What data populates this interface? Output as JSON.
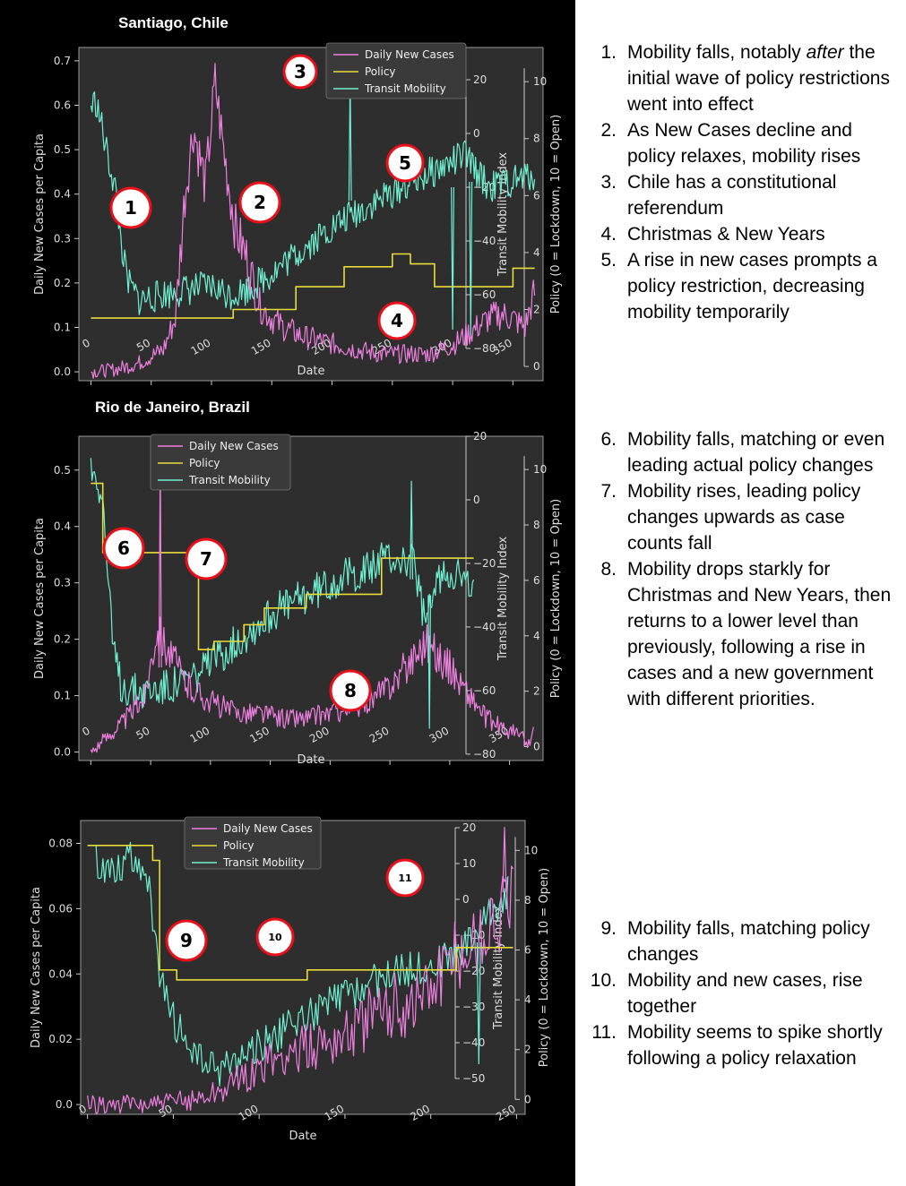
{
  "page": {
    "left_background": "#000000",
    "plot_background": "#2e2e2e",
    "right_background": "#ffffff"
  },
  "colors": {
    "cases": "#ee7fe0",
    "policy": "#e8dc3a",
    "mobility": "#6ff0d0",
    "annotation": "#e8101a"
  },
  "panels": [
    {
      "city": "Santiago, Chile",
      "annotation_markers": [
        "1",
        "2",
        "3",
        "4",
        "5"
      ],
      "notes": [
        {
          "num": "1.",
          "pre": "Mobility falls, notably ",
          "em": "after",
          "post": " the initial wave of policy restrictions went into effect"
        },
        {
          "num": "2.",
          "pre": "As New Cases decline and policy relaxes, mobility rises",
          "em": "",
          "post": ""
        },
        {
          "num": "3.",
          "pre": "Chile has a constitutional referendum",
          "em": "",
          "post": ""
        },
        {
          "num": "4.",
          "pre": "Christmas & New Years",
          "em": "",
          "post": ""
        },
        {
          "num": "5.",
          "pre": "A rise in new cases prompts a policy restriction, decreasing mobility temporarily",
          "em": "",
          "post": ""
        }
      ]
    },
    {
      "city": "Rio de Janeiro, Brazil",
      "annotation_markers": [
        "6",
        "7",
        "8"
      ],
      "notes": [
        {
          "num": "6.",
          "pre": "Mobility falls, matching or even leading actual policy changes",
          "em": "",
          "post": ""
        },
        {
          "num": "7.",
          "pre": "Mobility rises, leading policy changes upwards as case counts fall",
          "em": "",
          "post": ""
        },
        {
          "num": "8.",
          "pre": "Mobility drops starkly for Christmas and New Years, then returns to a lower level than previously, following a rise in cases and a new government with different priorities.",
          "em": "",
          "post": ""
        }
      ]
    },
    {
      "city": "",
      "annotation_markers": [
        "9",
        "10",
        "11"
      ],
      "notes": [
        {
          "num": "9.",
          "pre": "Mobility falls, matching policy changes",
          "em": "",
          "post": ""
        },
        {
          "num": "10.",
          "pre": "Mobility and new cases, rise together",
          "em": "",
          "post": ""
        },
        {
          "num": "11.",
          "pre": "Mobility seems to spike shortly following a policy relaxation",
          "em": "",
          "post": ""
        }
      ]
    }
  ],
  "chart_data": [
    {
      "type": "line",
      "xlabel": "Date",
      "ylabel": "Daily New Cases per Capita",
      "ylabel_mobility": "Transit Mobility Index",
      "ylabel_policy": "Policy (0 = Lockdown, 10 = Open)",
      "xlim": [
        -10,
        375
      ],
      "ylim": [
        -0.02,
        0.73
      ],
      "mobility_lim": [
        -92,
        32
      ],
      "policy_lim": [
        -0.5,
        11.2
      ],
      "xticks": [
        0,
        50,
        100,
        150,
        200,
        250,
        300,
        350
      ],
      "yticks": [
        0.0,
        0.1,
        0.2,
        0.3,
        0.4,
        0.5,
        0.6,
        0.7
      ],
      "mobility_ticks": [
        -80,
        -60,
        -40,
        -20,
        0,
        20
      ],
      "policy_ticks": [
        0,
        2,
        4,
        6,
        8,
        10
      ],
      "legend": [
        "Daily New Cases",
        "Policy",
        "Transit Mobility"
      ],
      "legend_position": "upper-right",
      "series": [
        {
          "name": "Daily New Cases",
          "axis": "cases",
          "x": [
            0,
            20,
            40,
            60,
            70,
            78,
            85,
            95,
            103,
            110,
            120,
            130,
            140,
            150,
            160,
            175,
            190,
            205,
            220,
            240,
            260,
            280,
            300,
            310,
            320,
            330,
            340,
            350,
            360,
            368
          ],
          "y": [
            0,
            0.005,
            0.02,
            0.05,
            0.12,
            0.4,
            0.55,
            0.42,
            0.65,
            0.5,
            0.32,
            0.25,
            0.15,
            0.12,
            0.1,
            0.08,
            0.07,
            0.06,
            0.05,
            0.04,
            0.04,
            0.04,
            0.06,
            0.08,
            0.1,
            0.12,
            0.13,
            0.12,
            0.1,
            0.18
          ],
          "noise": 0.06
        },
        {
          "name": "Policy",
          "axis": "policy",
          "x": [
            0,
            118,
            118,
            170,
            170,
            210,
            210,
            250,
            250,
            265,
            265,
            285,
            285,
            350,
            350,
            368
          ],
          "y": [
            1.7,
            1.7,
            2.0,
            2.0,
            2.8,
            2.8,
            3.5,
            3.5,
            3.95,
            3.95,
            3.6,
            3.6,
            2.8,
            2.8,
            3.45,
            3.45
          ],
          "noise": 0
        },
        {
          "name": "Transit Mobility",
          "axis": "mobility",
          "x": [
            0,
            4,
            8,
            12,
            20,
            25,
            30,
            40,
            60,
            80,
            100,
            115,
            130,
            150,
            170,
            190,
            210,
            230,
            250,
            270,
            290,
            310,
            330,
            350,
            368
          ],
          "y": [
            10,
            12,
            5,
            -5,
            -20,
            -40,
            -55,
            -62,
            -60,
            -58,
            -57,
            -60,
            -58,
            -52,
            -45,
            -38,
            -32,
            -27,
            -22,
            -17,
            -13,
            -8,
            -20,
            -18,
            -15
          ],
          "noise": 6
        }
      ],
      "spikes": [
        {
          "x": 215,
          "value": -25,
          "axis": "mobility",
          "tip": 21
        },
        {
          "x": 300,
          "value": -20,
          "axis": "mobility",
          "tip": -73
        },
        {
          "x": 315,
          "value": -18,
          "axis": "mobility",
          "tip": -75
        }
      ]
    },
    {
      "type": "line",
      "xlabel": "Date",
      "ylabel": "Daily New Cases per Capita",
      "ylabel_mobility": "Transit Mobility Index",
      "ylabel_policy": "Policy (0 = Lockdown, 10 = Open)",
      "xlim": [
        -10,
        378
      ],
      "ylim": [
        -0.015,
        0.56
      ],
      "mobility_lim": [
        -82,
        20
      ],
      "policy_lim": [
        -0.5,
        11.2
      ],
      "xticks": [
        0,
        50,
        100,
        150,
        200,
        250,
        300,
        350
      ],
      "yticks": [
        0.0,
        0.1,
        0.2,
        0.3,
        0.4,
        0.5
      ],
      "mobility_ticks": [
        -80,
        -60,
        -40,
        -20,
        0,
        20
      ],
      "policy_ticks": [
        0,
        2,
        4,
        6,
        8,
        10
      ],
      "legend": [
        "Daily New Cases",
        "Policy",
        "Transit Mobility"
      ],
      "legend_position": "upper-center",
      "series": [
        {
          "name": "Daily New Cases",
          "axis": "cases",
          "x": [
            0,
            15,
            30,
            45,
            55,
            65,
            80,
            100,
            120,
            140,
            160,
            180,
            200,
            220,
            240,
            255,
            270,
            280,
            290,
            300,
            310,
            320,
            330,
            345,
            360,
            365,
            370
          ],
          "y": [
            0,
            0.03,
            0.06,
            0.1,
            0.22,
            0.18,
            0.12,
            0.09,
            0.07,
            0.07,
            0.06,
            0.06,
            0.07,
            0.08,
            0.1,
            0.13,
            0.17,
            0.2,
            0.17,
            0.15,
            0.12,
            0.09,
            0.06,
            0.04,
            0.03,
            0.01,
            0.04
          ],
          "noise": 0.04
        },
        {
          "name": "Policy",
          "axis": "policy",
          "x": [
            0,
            10,
            10,
            90,
            90,
            103,
            103,
            128,
            128,
            145,
            145,
            180,
            180,
            243,
            243,
            320
          ],
          "y": [
            9.5,
            9.5,
            7.0,
            7.0,
            3.5,
            3.5,
            3.8,
            3.8,
            4.4,
            4.4,
            5.0,
            5.0,
            5.5,
            5.5,
            6.8,
            6.8
          ],
          "noise": 0
        },
        {
          "name": "Transit Mobility",
          "axis": "mobility",
          "x": [
            0,
            5,
            10,
            18,
            25,
            35,
            50,
            70,
            90,
            110,
            130,
            150,
            170,
            190,
            210,
            230,
            250,
            270,
            280,
            290,
            300,
            310,
            320
          ],
          "y": [
            10,
            8,
            0,
            -45,
            -58,
            -60,
            -60,
            -58,
            -55,
            -48,
            -42,
            -36,
            -32,
            -28,
            -24,
            -22,
            -18,
            -20,
            -40,
            -25,
            -22,
            -24,
            -30
          ],
          "noise": 6
        }
      ],
      "spikes": [
        {
          "x": 58,
          "value": 0.15,
          "axis": "cases",
          "tip": 0.53
        },
        {
          "x": 283,
          "value": -30,
          "axis": "mobility",
          "tip": -72
        },
        {
          "x": 268,
          "value": -25,
          "axis": "mobility",
          "tip": 6
        }
      ]
    },
    {
      "type": "line",
      "xlabel": "Date",
      "ylabel": "Daily New Cases per Capita",
      "ylabel_mobility": "Transit Mobility Index",
      "ylabel_policy": "Policy (0 = Lockdown, 10 = Open)",
      "xlim": [
        -4,
        255
      ],
      "ylim": [
        -0.003,
        0.087
      ],
      "mobility_lim": [
        -60,
        22
      ],
      "policy_lim": [
        -0.6,
        11.2
      ],
      "xticks": [
        0,
        50,
        100,
        150,
        200,
        250
      ],
      "yticks": [
        0.0,
        0.02,
        0.04,
        0.06,
        0.08
      ],
      "mobility_ticks": [
        -50,
        -40,
        -30,
        -20,
        -10,
        0,
        10,
        20
      ],
      "policy_ticks": [
        0,
        2,
        4,
        6,
        8,
        10
      ],
      "legend": [
        "Daily New Cases",
        "Policy",
        "Transit Mobility"
      ],
      "legend_position": "upper-center",
      "series": [
        {
          "name": "Daily New Cases",
          "axis": "cases",
          "x": [
            0,
            30,
            45,
            60,
            75,
            90,
            105,
            120,
            135,
            150,
            165,
            180,
            195,
            205,
            215,
            225,
            235,
            242,
            248
          ],
          "y": [
            0,
            0,
            0.0005,
            0.0015,
            0.004,
            0.008,
            0.012,
            0.016,
            0.019,
            0.022,
            0.026,
            0.03,
            0.034,
            0.04,
            0.045,
            0.05,
            0.055,
            0.06,
            0.065
          ],
          "noise": 0.012
        },
        {
          "name": "Policy",
          "axis": "policy",
          "x": [
            0,
            38,
            38,
            42,
            42,
            52,
            52,
            128,
            128,
            215,
            215,
            248
          ],
          "y": [
            10.2,
            10.2,
            9.6,
            9.6,
            5.2,
            5.2,
            4.8,
            4.8,
            5.2,
            5.2,
            6.1,
            6.1
          ],
          "noise": 0
        },
        {
          "name": "Transit Mobility",
          "axis": "mobility",
          "x": [
            5,
            15,
            25,
            32,
            36,
            40,
            45,
            55,
            65,
            75,
            90,
            110,
            130,
            150,
            170,
            190,
            210,
            225,
            235,
            245
          ],
          "y": [
            10,
            8,
            12,
            10,
            2,
            -15,
            -28,
            -38,
            -45,
            -48,
            -44,
            -38,
            -32,
            -27,
            -22,
            -19,
            -17,
            -10,
            -3,
            2
          ],
          "noise": 5
        }
      ],
      "spikes": [
        {
          "x": 228,
          "value": -12,
          "axis": "mobility",
          "tip": -46
        },
        {
          "x": 243,
          "value": 0.065,
          "axis": "cases",
          "tip": 0.085
        }
      ]
    }
  ]
}
